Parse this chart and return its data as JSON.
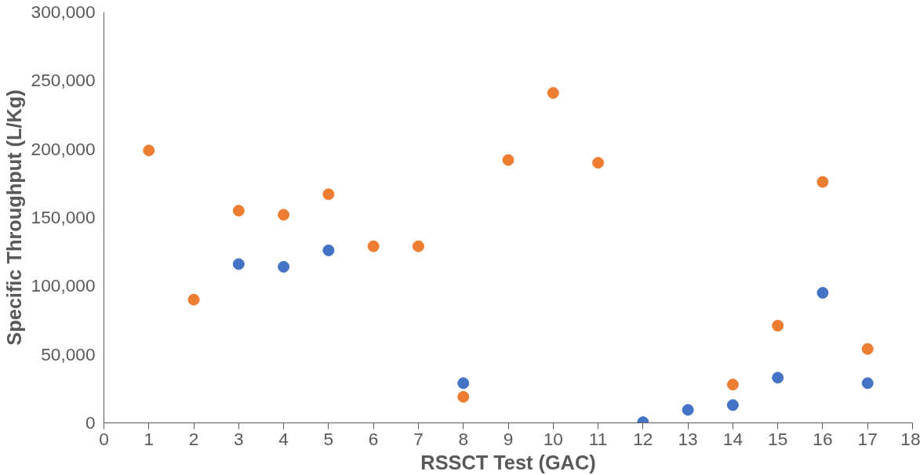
{
  "chart_data": {
    "type": "scatter",
    "xlabel": "RSSCT Test (GAC)",
    "ylabel": "Specific Throughput (L/Kg)",
    "marker": "circle",
    "grid": false,
    "xlim": [
      0,
      18
    ],
    "xticks": [
      0,
      1,
      2,
      3,
      4,
      5,
      6,
      7,
      8,
      9,
      10,
      11,
      12,
      13,
      14,
      15,
      16,
      17,
      18
    ],
    "ylim": [
      0,
      300000
    ],
    "yticks": [
      {
        "value": 0,
        "label": "0"
      },
      {
        "value": 50000,
        "label": "50,000"
      },
      {
        "value": 100000,
        "label": "100,000"
      },
      {
        "value": 150000,
        "label": "150,000"
      },
      {
        "value": 200000,
        "label": "200,000"
      },
      {
        "value": 250000,
        "label": "250,000"
      },
      {
        "value": 300000,
        "label": "300,000"
      }
    ],
    "x": [
      1,
      2,
      3,
      4,
      5,
      6,
      7,
      8,
      9,
      10,
      11,
      12,
      13,
      14,
      15,
      16,
      17
    ],
    "series": [
      {
        "color": "#4472c4",
        "values": [
          null,
          null,
          116000,
          114000,
          126000,
          null,
          null,
          29000,
          null,
          null,
          null,
          500,
          9500,
          13000,
          33000,
          95000,
          29000
        ]
      },
      {
        "color": "#ed7d31",
        "values": [
          199000,
          90000,
          155000,
          152000,
          167000,
          129000,
          129000,
          19000,
          192000,
          241000,
          190000,
          null,
          null,
          28000,
          71000,
          176000,
          54000
        ]
      }
    ]
  }
}
